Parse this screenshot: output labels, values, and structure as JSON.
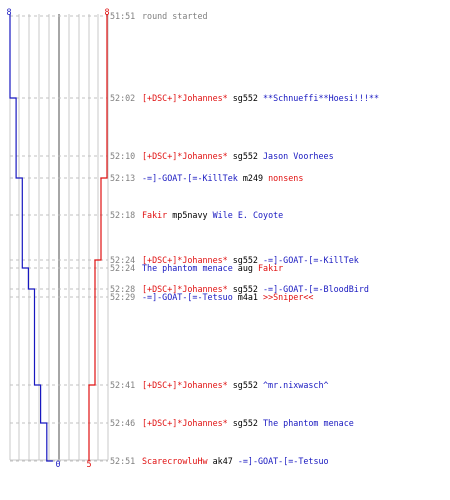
{
  "colors": {
    "red": "#e01010",
    "blue": "#1818c0",
    "gray_text": "#808080",
    "black": "#000000",
    "grid": "#c8c8c8",
    "dash": "#c0c0c0",
    "center": "#808080"
  },
  "chart_data": {
    "type": "line",
    "top_labels": {
      "blue": "8",
      "red": "8"
    },
    "bottom_labels": {
      "blue": "0",
      "red": "5"
    },
    "series": [
      {
        "color": "blue",
        "values": [
          8,
          8,
          7,
          7,
          6,
          6,
          6,
          5,
          4,
          4,
          3,
          2,
          1,
          0
        ]
      },
      {
        "color": "red",
        "values": [
          8,
          8,
          8,
          8,
          7,
          7,
          6,
          6,
          6,
          6,
          5,
          5,
          5,
          5
        ]
      }
    ],
    "events": [
      {
        "time": "51:51",
        "parts": [
          {
            "text": "round started",
            "color": "gray"
          }
        ]
      },
      {
        "time": "52:02",
        "parts": [
          {
            "text": "[+DSC+]*Johannes*",
            "color": "red"
          },
          {
            "text": " sg552 ",
            "color": "black"
          },
          {
            "text": "**Schnueffi**Hoesi!!!**",
            "color": "blue"
          }
        ]
      },
      {
        "time": "52:10",
        "parts": [
          {
            "text": "[+DSC+]*Johannes*",
            "color": "red"
          },
          {
            "text": " sg552 ",
            "color": "black"
          },
          {
            "text": "Jason Voorhees",
            "color": "blue"
          }
        ]
      },
      {
        "time": "52:13",
        "parts": [
          {
            "text": "-=]-GOAT-[=-KillTek",
            "color": "blue"
          },
          {
            "text": " m249 ",
            "color": "black"
          },
          {
            "text": "nonsens",
            "color": "red"
          }
        ]
      },
      {
        "time": "52:18",
        "parts": [
          {
            "text": "Fakir",
            "color": "red"
          },
          {
            "text": " mp5navy ",
            "color": "black"
          },
          {
            "text": "Wile E. Coyote",
            "color": "blue"
          }
        ]
      },
      {
        "time": "52:24",
        "parts": [
          {
            "text": "[+DSC+]*Johannes*",
            "color": "red"
          },
          {
            "text": " sg552 ",
            "color": "black"
          },
          {
            "text": "-=]-GOAT-[=-KillTek",
            "color": "blue"
          }
        ]
      },
      {
        "time": "52:24",
        "parts": [
          {
            "text": "The phantom menace",
            "color": "blue"
          },
          {
            "text": " aug ",
            "color": "black"
          },
          {
            "text": "Fakir",
            "color": "red"
          }
        ]
      },
      {
        "time": "52:28",
        "parts": [
          {
            "text": "[+DSC+]*Johannes*",
            "color": "red"
          },
          {
            "text": " sg552 ",
            "color": "black"
          },
          {
            "text": "-=]-GOAT-[=-BloodBird",
            "color": "blue"
          }
        ]
      },
      {
        "time": "52:29",
        "parts": [
          {
            "text": "-=]-GOAT-[=-Tetsuo",
            "color": "blue"
          },
          {
            "text": " m4a1 ",
            "color": "black"
          },
          {
            "text": ">>Sniper<<",
            "color": "red"
          }
        ]
      },
      {
        "time": "52:41",
        "parts": [
          {
            "text": "[+DSC+]*Johannes*",
            "color": "red"
          },
          {
            "text": " sg552 ",
            "color": "black"
          },
          {
            "text": "^mr.nixwasch^",
            "color": "blue"
          }
        ]
      },
      {
        "time": "52:46",
        "parts": [
          {
            "text": "[+DSC+]*Johannes*",
            "color": "red"
          },
          {
            "text": " sg552 ",
            "color": "black"
          },
          {
            "text": "The phantom menace",
            "color": "blue"
          }
        ]
      },
      {
        "time": "52:51",
        "parts": [
          {
            "text": "ScarecrowluHw",
            "color": "red"
          },
          {
            "text": " ak47 ",
            "color": "black"
          },
          {
            "text": "-=]-GOAT-[=-Tetsuo",
            "color": "blue"
          }
        ]
      }
    ]
  }
}
